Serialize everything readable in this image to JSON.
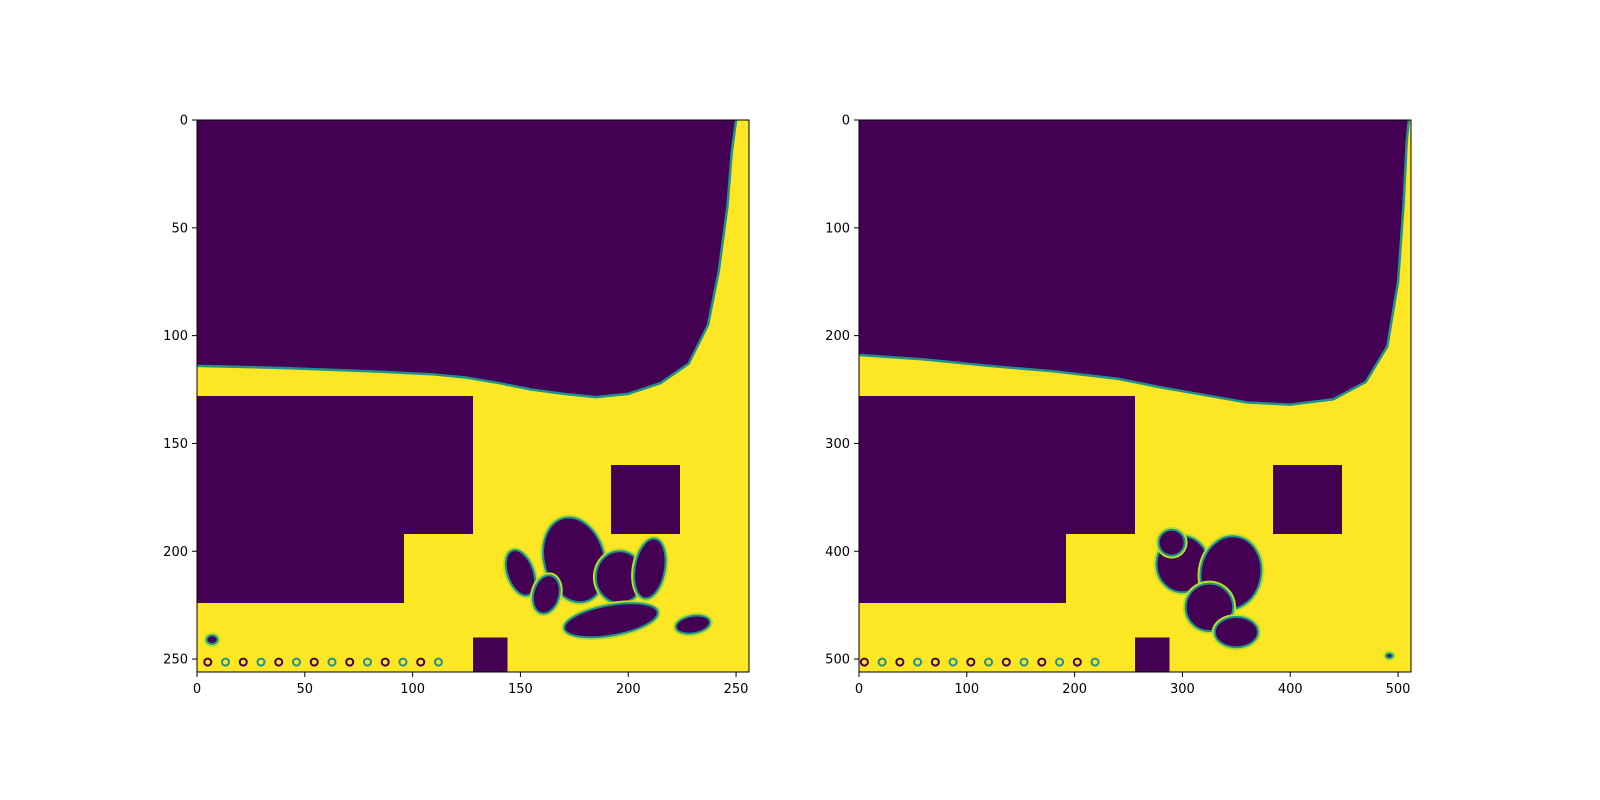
{
  "chart_data": [
    {
      "type": "heatmap",
      "title": "",
      "xlabel": "",
      "ylabel": "",
      "grid": false,
      "colormap": "viridis",
      "xlim": [
        0,
        256
      ],
      "ylim": [
        256,
        0
      ],
      "xticks": [
        0,
        50,
        100,
        150,
        200,
        250
      ],
      "yticks": [
        0,
        50,
        100,
        150,
        200,
        250
      ],
      "colors": {
        "low": "#440154",
        "mid": "#21918c",
        "light": "#bddf26",
        "high": "#fde725"
      },
      "regions": {
        "upper_fluid_boundary": [
          [
            0,
            114
          ],
          [
            40,
            115
          ],
          [
            80,
            116.5
          ],
          [
            110,
            118
          ],
          [
            125,
            119.5
          ],
          [
            140,
            122
          ],
          [
            155,
            125
          ],
          [
            170,
            127
          ],
          [
            185,
            128.5
          ],
          [
            200,
            127
          ],
          [
            215,
            122
          ],
          [
            228,
            113
          ],
          [
            237,
            95
          ],
          [
            242,
            70
          ],
          [
            246,
            40
          ],
          [
            248,
            15
          ],
          [
            250,
            0
          ]
        ],
        "solid_blocks": [
          {
            "x": [
              0,
              128
            ],
            "y": [
              128,
              192
            ]
          },
          {
            "x": [
              0,
              96
            ],
            "y": [
              192,
              224
            ]
          },
          {
            "x": [
              192,
              224
            ],
            "y": [
              160,
              192
            ]
          },
          {
            "x": [
              128,
              144
            ],
            "y": [
              240,
              256
            ]
          }
        ],
        "vortex_patches": [
          {
            "cx": 175,
            "cy": 204,
            "rx": 14,
            "ry": 20,
            "rot": -15
          },
          {
            "cx": 196,
            "cy": 212,
            "rx": 11,
            "ry": 12,
            "rot": 0
          },
          {
            "cx": 210,
            "cy": 208,
            "rx": 7,
            "ry": 14,
            "rot": 10
          },
          {
            "cx": 192,
            "cy": 232,
            "rx": 22,
            "ry": 7,
            "rot": -10
          },
          {
            "cx": 150,
            "cy": 210,
            "rx": 6,
            "ry": 11,
            "rot": -20
          },
          {
            "cx": 162,
            "cy": 220,
            "rx": 6,
            "ry": 9,
            "rot": 15
          },
          {
            "cx": 230,
            "cy": 234,
            "rx": 8,
            "ry": 4,
            "rot": -10
          },
          {
            "cx": 7,
            "cy": 241,
            "rx": 2.5,
            "ry": 2,
            "rot": 0
          }
        ]
      }
    },
    {
      "type": "heatmap",
      "title": "",
      "xlabel": "",
      "ylabel": "",
      "grid": false,
      "colormap": "viridis",
      "xlim": [
        0,
        512
      ],
      "ylim": [
        512,
        0
      ],
      "xticks": [
        0,
        100,
        200,
        300,
        400,
        500
      ],
      "yticks": [
        0,
        100,
        200,
        300,
        400,
        500
      ],
      "colors": {
        "low": "#440154",
        "mid": "#21918c",
        "light": "#bddf26",
        "high": "#fde725"
      },
      "regions": {
        "upper_fluid_boundary": [
          [
            0,
            218
          ],
          [
            60,
            222
          ],
          [
            120,
            228
          ],
          [
            180,
            233
          ],
          [
            240,
            240
          ],
          [
            280,
            248
          ],
          [
            320,
            255
          ],
          [
            360,
            262
          ],
          [
            400,
            264
          ],
          [
            440,
            259
          ],
          [
            470,
            243
          ],
          [
            490,
            210
          ],
          [
            500,
            150
          ],
          [
            505,
            80
          ],
          [
            508,
            20
          ],
          [
            510,
            0
          ]
        ],
        "solid_blocks": [
          {
            "x": [
              0,
              256
            ],
            "y": [
              256,
              384
            ]
          },
          {
            "x": [
              0,
              192
            ],
            "y": [
              384,
              448
            ]
          },
          {
            "x": [
              384,
              448
            ],
            "y": [
              320,
              384
            ]
          },
          {
            "x": [
              256,
              288
            ],
            "y": [
              480,
              512
            ]
          }
        ],
        "vortex_patches": [
          {
            "cx": 300,
            "cy": 412,
            "rx": 24,
            "ry": 26,
            "rot": 0
          },
          {
            "cx": 345,
            "cy": 420,
            "rx": 28,
            "ry": 34,
            "rot": 10
          },
          {
            "cx": 325,
            "cy": 452,
            "rx": 22,
            "ry": 22,
            "rot": 0
          },
          {
            "cx": 350,
            "cy": 475,
            "rx": 20,
            "ry": 14,
            "rot": 0
          },
          {
            "cx": 290,
            "cy": 392,
            "rx": 12,
            "ry": 12,
            "rot": 0
          },
          {
            "cx": 492,
            "cy": 497,
            "rx": 3,
            "ry": 2,
            "rot": 0
          }
        ]
      }
    }
  ]
}
